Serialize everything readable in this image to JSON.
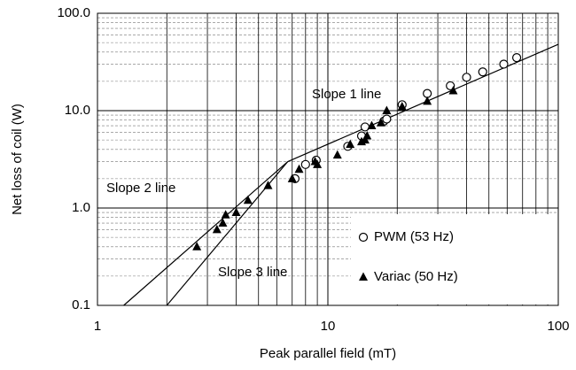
{
  "chart_data": {
    "type": "scatter",
    "xscale": "log",
    "yscale": "log",
    "xlabel": "Peak parallel field (mT)",
    "ylabel": "Net loss of coil (W)",
    "xlim": [
      1,
      100
    ],
    "ylim": [
      0.1,
      100
    ],
    "xticks": [
      1,
      10,
      100
    ],
    "yticks": [
      {
        "value": 0.1,
        "label": "0.1"
      },
      {
        "value": 1,
        "label": "1.0"
      },
      {
        "value": 10,
        "label": "10.0"
      },
      {
        "value": 100,
        "label": "100.0"
      }
    ],
    "xminor_ticks": [
      2,
      3,
      4,
      5,
      6,
      7,
      8,
      9,
      20,
      30,
      40,
      50,
      60,
      70,
      80,
      90
    ],
    "yminor_ticks": [
      0.2,
      0.3,
      0.4,
      0.5,
      0.6,
      0.7,
      0.8,
      0.9,
      2,
      3,
      4,
      5,
      6,
      7,
      8,
      9,
      20,
      30,
      40,
      50,
      60,
      70,
      80,
      90
    ],
    "grid": true,
    "legend": "lower right",
    "series": [
      {
        "name": "PWM (53 Hz)",
        "marker": "circle",
        "color": "#000000",
        "x": [
          7.2,
          8.0,
          8.9,
          12.2,
          14.0,
          14.5,
          17.5,
          18.0,
          21.0,
          27,
          34,
          40,
          47,
          58,
          66
        ],
        "values": [
          2.0,
          2.8,
          3.1,
          4.3,
          5.5,
          6.8,
          7.8,
          8.2,
          11.5,
          15,
          18,
          22,
          25,
          30,
          35
        ]
      },
      {
        "name": "Variac (50 Hz)",
        "marker": "triangle",
        "color": "#000000",
        "x": [
          2.7,
          3.3,
          3.5,
          3.6,
          4.0,
          4.5,
          5.5,
          7.0,
          7.5,
          8.8,
          9.0,
          11.0,
          12.5,
          14.0,
          14.5,
          14.8,
          15.5,
          17,
          18,
          21,
          27,
          35
        ],
        "values": [
          0.4,
          0.6,
          0.7,
          0.85,
          0.9,
          1.2,
          1.7,
          2.0,
          2.5,
          3.0,
          2.8,
          3.5,
          4.5,
          4.8,
          5.0,
          5.5,
          7,
          7.5,
          10,
          11,
          12.5,
          16
        ]
      }
    ],
    "lines": [
      {
        "label": "Slope 1 line",
        "x": [
          6.7,
          100
        ],
        "values": [
          3.0,
          48
        ]
      },
      {
        "label": "Slope 2 line",
        "x": [
          1.3,
          6.7
        ],
        "values": [
          0.1,
          3.0
        ]
      },
      {
        "label": "Slope 3 line",
        "x": [
          2.0,
          6.7
        ],
        "values": [
          0.1,
          3.0
        ]
      }
    ]
  }
}
